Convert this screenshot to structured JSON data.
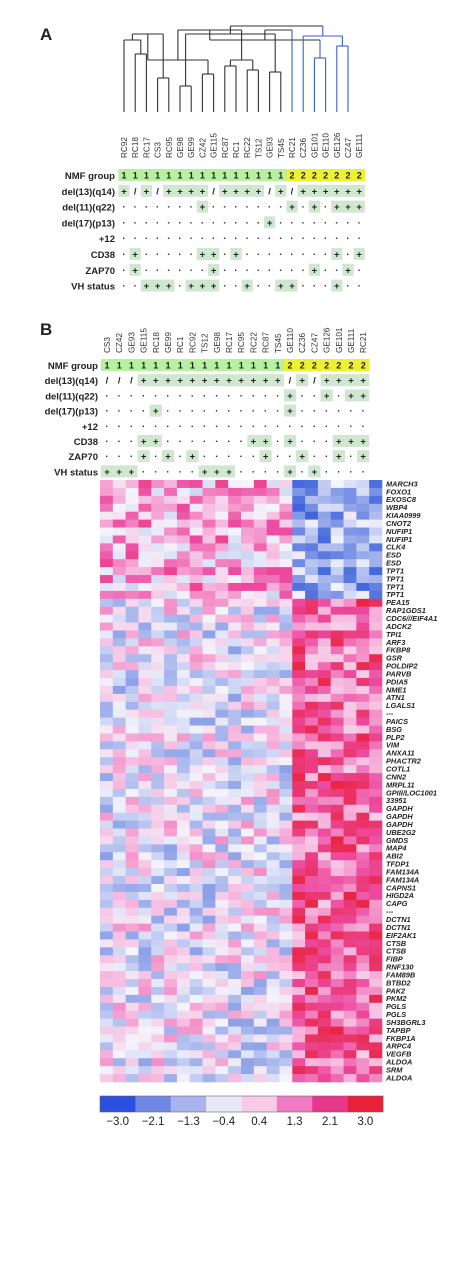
{
  "panel_a": {
    "letter": "A",
    "samples": [
      "RC92",
      "RC18",
      "RC17",
      "CS3",
      "RC95",
      "GE98",
      "GE99",
      "CZ42",
      "GE115",
      "RC87",
      "RC1",
      "RC22",
      "TS12",
      "GE93",
      "TS45",
      "RC21",
      "CZ36",
      "GE101",
      "GE110",
      "GE126",
      "CZ47",
      "GE111"
    ],
    "row_labels": [
      "NMF group",
      "del(13)(q14)",
      "del(11)(q22)",
      "del(17)(p13)",
      "+12",
      "CD38",
      "ZAP70",
      "VH status"
    ],
    "rows": [
      "1111111111111112222222",
      "+/+/++++/++++/+/++++++",
      "-------+-------+-+-+++",
      "-------------+--------",
      "----------------------",
      "-+-----++-+--------+-+",
      "-+------+--------+--+-",
      "--+++-+++--+--++---+--"
    ],
    "highlight_tokens": [
      "+",
      "/"
    ]
  },
  "panel_b": {
    "letter": "B",
    "samples": [
      "CS3",
      "CZ42",
      "GE93",
      "GE115",
      "RC18",
      "GE99",
      "RC1",
      "RC92",
      "TS12",
      "GE98",
      "RC17",
      "RC95",
      "RC22",
      "RC87",
      "TS45",
      "GE110",
      "CZ36",
      "CZ47",
      "GE126",
      "GE101",
      "GE111",
      "RC21"
    ],
    "row_labels": [
      "NMF group",
      "del(13)(q14)",
      "del(11)(q22)",
      "del(17)(p13)",
      "+12",
      "CD38",
      "ZAP70",
      "VH status"
    ],
    "rows": [
      "1111111111111112222222",
      "///++++++++++++/+/++++",
      "---------------+--+-++",
      "----+----------+------",
      "----------------------",
      "---++-------++-+---+++",
      "---+-+-+-----+--+--+-+",
      "+++-----+++----+-+----"
    ],
    "highlight_tokens": [
      "+"
    ]
  },
  "heatmap": {
    "genes": [
      "MARCH3",
      "FOXO1",
      "EXOSC8",
      "WBP4",
      "KIAA0999",
      "CNOT2",
      "NUFIP1",
      "NUFIP1",
      "CLK4",
      "ESD",
      "ESD",
      "TPT1",
      "TPT1",
      "TPT1",
      "TPT1",
      "PEA15",
      "RAP1GDS1",
      "CDC6///EIF4A1",
      "ADCK2",
      "TPI1",
      "ARF3",
      "FKBP8",
      "GSR",
      "POLDIP2",
      "PARVB",
      "PDIA5",
      "NME1",
      "ATN1",
      "LGALS1",
      "---",
      "PAICS",
      "BSG",
      "PLP2",
      "VIM",
      "ANXA11",
      "PHACTR2",
      "COTL1",
      "CNN2",
      "MRPL11",
      "GPIII/LOC1001",
      "33951",
      "GAPDH",
      "GAPDH",
      "GAPDH",
      "UBE2G2",
      "GMDS",
      "MAP4",
      "ABI2",
      "TFDP1",
      "FAM134A",
      "FAM134A",
      "CAPNS1",
      "HIGD2A",
      "CAPG",
      "---",
      "DCTN1",
      "DCTN1",
      "EIF2AK1",
      "CTSB",
      "CTSB",
      "FIBP",
      "RNF130",
      "FAM89B",
      "BTBD2",
      "PAK2",
      "PKM2",
      "PGLS",
      "PGLS",
      "SH3BGRL3",
      "TAPBP",
      "FKBP1A",
      "ARPC4",
      "VEGFB",
      "ALDOA",
      "SRM",
      "ALDOA"
    ],
    "n_columns": 22,
    "group2_start_column": 15,
    "top_block_rows": 15,
    "color_scale": [
      "#2a54d8",
      "#8fa3e8",
      "#f4f4fb",
      "#f69ad0",
      "#ec3b8f",
      "#e81f33"
    ]
  },
  "legend": {
    "ticks": [
      "−3.0",
      "−2.1",
      "−1.3",
      "−0.4",
      "0.4",
      "1.3",
      "2.1",
      "3.0"
    ],
    "colors": [
      "#2a4fe0",
      "#6f86e3",
      "#a9b4ee",
      "#e9e8f6",
      "#f9c9e8",
      "#f07ac4",
      "#e8388c",
      "#e8203a"
    ]
  }
}
